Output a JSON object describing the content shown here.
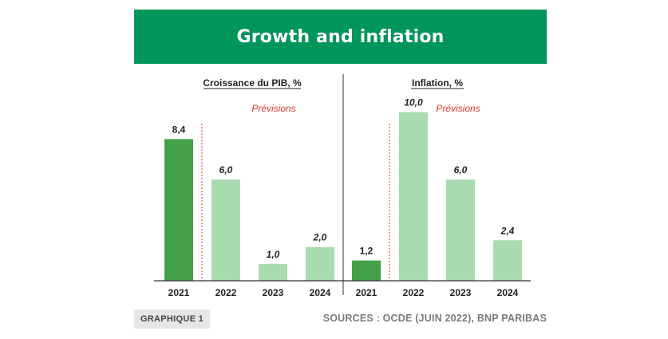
{
  "title": "Growth and inflation",
  "colors": {
    "banner": "#00955a",
    "actual": "#43a047",
    "forecast": "#a9dbb0",
    "forecast_line": "#e53935",
    "forecast_label": "#e53935"
  },
  "chart_data": [
    {
      "type": "bar",
      "title": "Croissance du PIB, %",
      "forecast_label": "Prévisions",
      "categories": [
        "2021",
        "2022",
        "2023",
        "2024"
      ],
      "values": [
        8.4,
        6.0,
        1.0,
        2.0
      ],
      "value_labels": [
        "8,4",
        "6,0",
        "1,0",
        "2,0"
      ],
      "forecast_flags": [
        false,
        true,
        true,
        true
      ],
      "ylim": [
        0,
        10.5
      ],
      "grid": false
    },
    {
      "type": "bar",
      "title": "Inflation, %",
      "forecast_label": "Prévisions",
      "categories": [
        "2021",
        "2022",
        "2023",
        "2024"
      ],
      "values": [
        1.2,
        10.0,
        6.0,
        2.4
      ],
      "value_labels": [
        "1,2",
        "10,0",
        "6,0",
        "2,4"
      ],
      "forecast_flags": [
        false,
        true,
        true,
        true
      ],
      "ylim": [
        0,
        10.5
      ],
      "grid": false
    }
  ],
  "footer": {
    "tag": "GRAPHIQUE 1",
    "sources": "SOURCES : OCDE (JUIN 2022), BNP PARIBAS"
  }
}
